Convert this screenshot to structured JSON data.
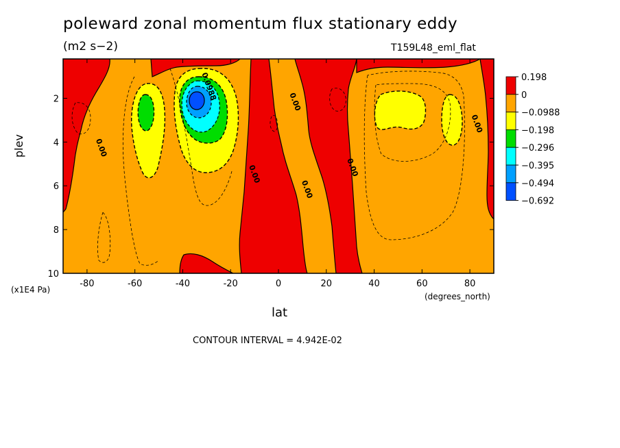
{
  "chart_data": {
    "type": "heatmap",
    "title": "poleward zonal momentum flux stationary eddy",
    "units": "(m2 s−2)",
    "run_label": "T159L48_eml_flat",
    "xlabel": "lat",
    "xunit": "(degrees_north)",
    "ylabel": "plev",
    "yunit": "(x1E4 Pa)",
    "xlim": [
      -90,
      90
    ],
    "ylim": [
      10,
      0.2
    ],
    "x_ticks": [
      -80,
      -60,
      -40,
      -20,
      0,
      20,
      40,
      60,
      80
    ],
    "y_ticks": [
      2,
      4,
      6,
      8,
      10
    ],
    "contour_interval_text": "CONTOUR INTERVAL = 4.942E-02",
    "legend": {
      "placement": "right",
      "levels": [
        "0.198",
        "0",
        "−0.0988",
        "−0.198",
        "−0.296",
        "−0.395",
        "−0.494",
        "−0.692"
      ],
      "colors": [
        "#ee0000",
        "#ffa500",
        "#ffff00",
        "#00dd00",
        "#00ffff",
        "#00a0ff",
        "#0050ff"
      ]
    },
    "contour_labels": [
      {
        "text": "0.00",
        "lat": -75,
        "plev": 4.3
      },
      {
        "text": "0.0988",
        "lat": -30,
        "plev": 1.5
      },
      {
        "text": "0.00",
        "lat": 6,
        "plev": 2.2
      },
      {
        "text": "0.00",
        "lat": -11,
        "plev": 5.5
      },
      {
        "text": "0.00",
        "lat": 11,
        "plev": 6.2
      },
      {
        "text": "0.00",
        "lat": 30,
        "plev": 5.2
      },
      {
        "text": "0.00",
        "lat": 82,
        "plev": 3.2
      }
    ]
  }
}
